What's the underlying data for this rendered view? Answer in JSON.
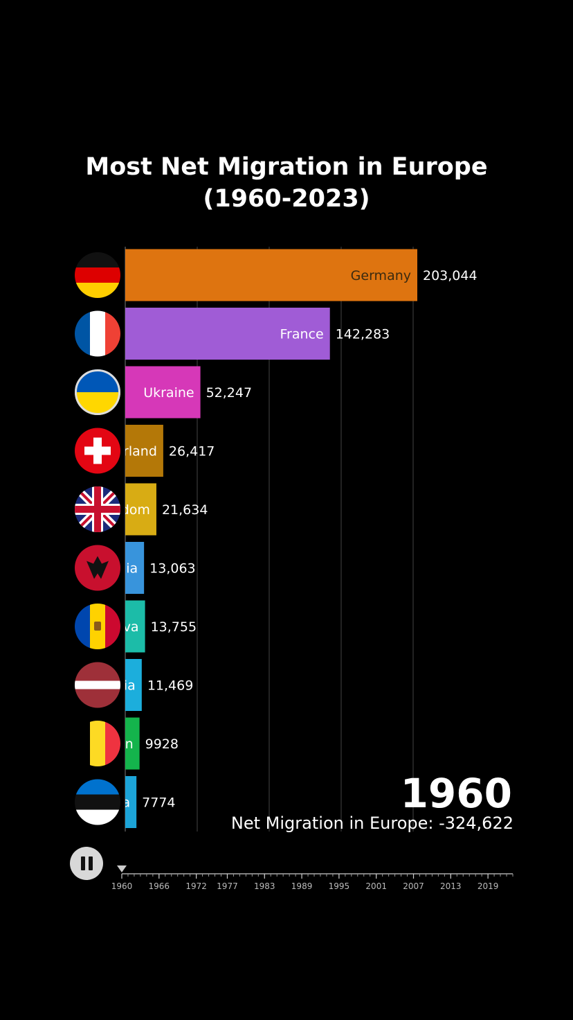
{
  "title_lines": [
    "Most Net Migration in Europe",
    "(1960-2023)"
  ],
  "current_year": "1960",
  "total_text": "Net Migration in Europe: -324,622",
  "chart_data": {
    "type": "bar",
    "orientation": "horizontal",
    "title": "Most Net Migration in Europe (1960-2023)",
    "xlim": [
      0,
      210000
    ],
    "grid": true,
    "bars": [
      {
        "name": "Germany",
        "label_visible": "Germany",
        "value": 203044,
        "value_label": "203,044",
        "color": "#de7410",
        "flag": "germany-flag"
      },
      {
        "name": "France",
        "label_visible": "France",
        "value": 142283,
        "value_label": "142,283",
        "color": "#a05cd6",
        "flag": "france-flag"
      },
      {
        "name": "Ukraine",
        "label_visible": "Ukraine",
        "value": 52247,
        "value_label": "52,247",
        "color": "#d638b8",
        "flag": "ukraine-flag"
      },
      {
        "name": "Switzerland",
        "label_visible": "rland",
        "value": 26417,
        "value_label": "26,417",
        "color": "#b47808",
        "flag": "switzerland-flag"
      },
      {
        "name": "United Kingdom",
        "label_visible": "dom",
        "value": 21634,
        "value_label": "21,634",
        "color": "#d8ac14",
        "flag": "uk-flag"
      },
      {
        "name": "Albania",
        "label_visible": "ia",
        "value": 13063,
        "value_label": "13,063",
        "color": "#3894dc",
        "flag": "albania-flag"
      },
      {
        "name": "Moldova",
        "label_visible": "va",
        "value": 13755,
        "value_label": "13,755",
        "color": "#1cbca8",
        "flag": "moldova-flag"
      },
      {
        "name": "Latvia",
        "label_visible": "ia",
        "value": 11469,
        "value_label": "11,469",
        "color": "#1caedc",
        "flag": "latvia-flag"
      },
      {
        "name": "Belgium",
        "label_visible": "n",
        "value": 9928,
        "value_label": "9928",
        "color": "#14b44c",
        "flag": "belgium-flag"
      },
      {
        "name": "Estonia",
        "label_visible": "a",
        "value": 7774,
        "value_label": "7774",
        "color": "#1ca4d8",
        "flag": "estonia-flag"
      }
    ],
    "timeline": {
      "ticks": [
        "1960",
        "1966",
        "1972",
        "1977",
        "1983",
        "1989",
        "1995",
        "2001",
        "2007",
        "2013",
        "2019"
      ],
      "range": [
        1960,
        2023
      ],
      "current": 1960
    }
  }
}
